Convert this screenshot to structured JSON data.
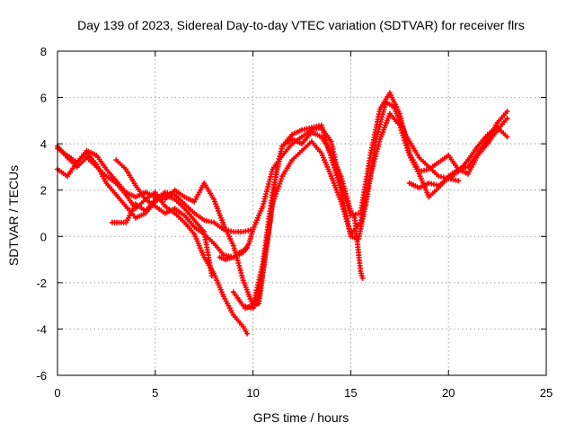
{
  "chart_data": {
    "type": "scatter",
    "title": "Day 139 of 2023, Sidereal Day-to-day VTEC variation (SDTVAR) for receiver flrs",
    "xlabel": "GPS time / hours",
    "ylabel": "SDTVAR / TECUs",
    "xlim": [
      0,
      25
    ],
    "ylim": [
      -6,
      8
    ],
    "xticks": [
      0,
      5,
      10,
      15,
      20,
      25
    ],
    "yticks": [
      -6,
      -4,
      -2,
      0,
      2,
      4,
      6,
      8
    ],
    "grid": true,
    "marker": "+",
    "color": "#ff0000",
    "series": [
      {
        "name": "track-1",
        "points": [
          [
            0,
            3.9
          ],
          [
            0.5,
            3.4
          ],
          [
            1,
            3.0
          ],
          [
            1.5,
            3.4
          ],
          [
            2,
            3.0
          ],
          [
            2.5,
            2.6
          ],
          [
            3,
            2.3
          ],
          [
            3.5,
            1.8
          ],
          [
            4,
            1.2
          ],
          [
            4.5,
            1.6
          ],
          [
            5,
            1.9
          ],
          [
            5.5,
            1.3
          ],
          [
            6,
            1.0
          ],
          [
            6.5,
            0.6
          ],
          [
            7,
            0.1
          ],
          [
            7.5,
            -0.9
          ],
          [
            8,
            -1.6
          ],
          [
            8.5,
            -2.6
          ],
          [
            9,
            -3.4
          ],
          [
            9.5,
            -3.9
          ],
          [
            9.7,
            -4.2
          ]
        ]
      },
      {
        "name": "track-2",
        "points": [
          [
            0,
            2.9
          ],
          [
            0.5,
            2.6
          ],
          [
            1,
            3.2
          ],
          [
            1.5,
            3.6
          ],
          [
            2,
            3.1
          ],
          [
            2.5,
            2.3
          ],
          [
            3,
            1.8
          ],
          [
            3.5,
            1.3
          ],
          [
            4,
            0.8
          ],
          [
            4.5,
            1.0
          ],
          [
            5,
            1.5
          ],
          [
            5.5,
            1.8
          ],
          [
            6,
            1.6
          ],
          [
            6.5,
            1.2
          ],
          [
            7,
            0.7
          ],
          [
            7.5,
            0.2
          ],
          [
            7.9,
            -1.7
          ]
        ]
      },
      {
        "name": "track-3",
        "points": [
          [
            0,
            3.8
          ],
          [
            0.5,
            3.5
          ],
          [
            1,
            3.2
          ],
          [
            1.5,
            3.7
          ],
          [
            2,
            3.5
          ],
          [
            2.5,
            2.9
          ],
          [
            3,
            2.4
          ],
          [
            3.5,
            1.9
          ],
          [
            4,
            1.7
          ],
          [
            4.5,
            1.9
          ],
          [
            5,
            1.7
          ],
          [
            5.5,
            1.6
          ],
          [
            6,
            2.0
          ],
          [
            6.5,
            1.7
          ],
          [
            7,
            1.5
          ],
          [
            7.5,
            2.3
          ],
          [
            8,
            1.6
          ],
          [
            8.5,
            0.5
          ],
          [
            9,
            -0.4
          ],
          [
            9.5,
            -1.9
          ],
          [
            10,
            -3.0
          ],
          [
            10.3,
            -2.9
          ],
          [
            10.6,
            -1.0
          ],
          [
            11,
            1.4
          ],
          [
            11.5,
            2.6
          ],
          [
            12,
            3.3
          ],
          [
            12.5,
            3.7
          ],
          [
            13,
            4.1
          ],
          [
            13.5,
            3.6
          ],
          [
            14,
            2.6
          ],
          [
            14.5,
            1.5
          ],
          [
            15,
            0.1
          ],
          [
            15.5,
            0.6
          ],
          [
            16,
            2.6
          ],
          [
            16.5,
            4.2
          ],
          [
            17,
            5.3
          ],
          [
            17.5,
            4.8
          ],
          [
            18,
            3.5
          ],
          [
            18.5,
            2.7
          ],
          [
            19,
            1.7
          ],
          [
            19.5,
            2.1
          ],
          [
            20,
            2.6
          ],
          [
            20.5,
            2.9
          ],
          [
            21,
            2.7
          ],
          [
            21.5,
            3.5
          ],
          [
            22,
            4.0
          ],
          [
            22.5,
            4.6
          ],
          [
            23,
            5.1
          ]
        ]
      },
      {
        "name": "track-4",
        "points": [
          [
            2.8,
            0.6
          ],
          [
            3.5,
            0.6
          ],
          [
            4,
            1.4
          ],
          [
            4.5,
            1.1
          ],
          [
            5,
            1.6
          ],
          [
            5.5,
            1.9
          ],
          [
            6,
            1.8
          ],
          [
            6.5,
            1.4
          ],
          [
            7,
            1.0
          ],
          [
            7.5,
            0.7
          ],
          [
            8,
            0.6
          ],
          [
            8.5,
            0.3
          ],
          [
            9,
            0.2
          ],
          [
            9.5,
            0.2
          ],
          [
            10,
            0.3
          ],
          [
            10.5,
            1.3
          ],
          [
            11,
            2.9
          ],
          [
            11.5,
            3.5
          ],
          [
            12,
            4.0
          ],
          [
            12.5,
            4.3
          ],
          [
            13,
            4.6
          ],
          [
            13.5,
            4.7
          ],
          [
            14,
            4.1
          ],
          [
            14.5,
            2.2
          ],
          [
            15,
            0.9
          ],
          [
            15.5,
            1.0
          ],
          [
            16,
            3.5
          ],
          [
            16.5,
            5.5
          ],
          [
            17,
            6.2
          ],
          [
            17.5,
            5.3
          ],
          [
            18,
            3.6
          ],
          [
            18.5,
            2.8
          ],
          [
            19,
            2.9
          ],
          [
            19.5,
            3.2
          ],
          [
            20,
            3.5
          ],
          [
            20.5,
            2.9
          ],
          [
            21,
            3.0
          ],
          [
            21.5,
            3.6
          ],
          [
            22,
            4.2
          ],
          [
            22.5,
            4.9
          ],
          [
            23,
            5.4
          ]
        ]
      },
      {
        "name": "track-5",
        "points": [
          [
            3,
            3.3
          ],
          [
            3.5,
            2.9
          ],
          [
            4,
            2.2
          ],
          [
            4.5,
            1.6
          ],
          [
            5,
            1.3
          ],
          [
            5.5,
            1.0
          ],
          [
            6,
            1.2
          ],
          [
            6.5,
            0.9
          ],
          [
            7,
            0.4
          ],
          [
            7.5,
            0.1
          ],
          [
            8,
            -0.3
          ],
          [
            8.5,
            -0.8
          ],
          [
            9,
            -0.9
          ],
          [
            9.5,
            -0.7
          ],
          [
            9.8,
            -0.3
          ],
          [
            10,
            0.3
          ]
        ]
      },
      {
        "name": "track-6",
        "points": [
          [
            9,
            -2.4
          ],
          [
            9.5,
            -3.0
          ],
          [
            10,
            -3.1
          ],
          [
            10.3,
            -2.6
          ],
          [
            10.8,
            0.2
          ],
          [
            11.2,
            2.9
          ],
          [
            11.5,
            3.9
          ],
          [
            12,
            4.2
          ],
          [
            12.5,
            4.0
          ],
          [
            13,
            4.5
          ],
          [
            13.5,
            4.3
          ],
          [
            14,
            3.6
          ],
          [
            14.5,
            2.6
          ],
          [
            15,
            1.1
          ],
          [
            15.2,
            0.8
          ],
          [
            15.5,
            -1.5
          ],
          [
            15.6,
            -1.8
          ]
        ]
      },
      {
        "name": "track-7",
        "points": [
          [
            9.6,
            -3.1
          ],
          [
            10,
            -3.0
          ],
          [
            10.5,
            -1.2
          ],
          [
            11,
            1.9
          ],
          [
            11.5,
            3.9
          ],
          [
            12,
            4.4
          ],
          [
            12.5,
            4.6
          ],
          [
            13,
            4.7
          ],
          [
            13.5,
            4.8
          ],
          [
            14,
            3.4
          ],
          [
            14.5,
            2.0
          ],
          [
            15,
            0.0
          ],
          [
            15.4,
            -0.1
          ],
          [
            15.8,
            1.5
          ],
          [
            16.3,
            4.2
          ],
          [
            16.8,
            5.8
          ],
          [
            17.2,
            5.6
          ],
          [
            17.8,
            4.4
          ],
          [
            18.5,
            3.4
          ],
          [
            19,
            3.0
          ],
          [
            19.5,
            2.6
          ],
          [
            20,
            2.5
          ],
          [
            20.5,
            2.4
          ]
        ]
      },
      {
        "name": "track-8",
        "points": [
          [
            18,
            2.3
          ],
          [
            18.5,
            2.1
          ],
          [
            19,
            2.3
          ],
          [
            19.5,
            2.2
          ],
          [
            20,
            2.5
          ],
          [
            20.5,
            2.8
          ],
          [
            21,
            3.3
          ],
          [
            21.5,
            3.9
          ],
          [
            22,
            4.4
          ],
          [
            22.5,
            4.7
          ],
          [
            23,
            4.3
          ]
        ]
      },
      {
        "name": "track-9",
        "points": [
          [
            8.3,
            -0.9
          ],
          [
            8.6,
            -1.0
          ],
          [
            9,
            -0.9
          ],
          [
            9.3,
            -0.7
          ],
          [
            9.7,
            -0.5
          ]
        ]
      }
    ]
  }
}
